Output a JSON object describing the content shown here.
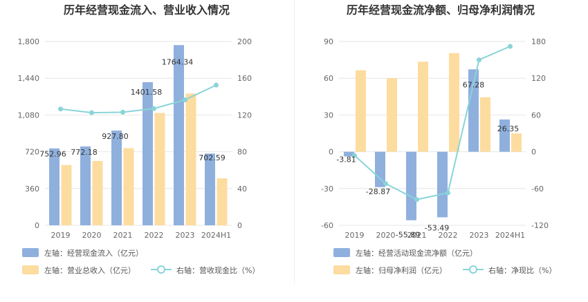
{
  "chart_data": [
    {
      "type": "bar",
      "title": "历年经营现金流入、营业收入情况",
      "categories": [
        "2019",
        "2020",
        "2021",
        "2022",
        "2023",
        "2024H1"
      ],
      "y_left": {
        "ticks": [
          "0",
          "360",
          "720",
          "1,080",
          "1,440",
          "1,800"
        ],
        "ylim": [
          0,
          1800
        ]
      },
      "y_right": {
        "ticks": [
          "0",
          "40",
          "80",
          "120",
          "160",
          "200"
        ],
        "ylim": [
          0,
          200
        ]
      },
      "series": [
        {
          "name": "左轴：经营现金流入（亿元）",
          "axis": "left",
          "type": "bar",
          "color": "#8fb0dd",
          "values": [
            752.96,
            772.18,
            927.8,
            1401.58,
            1764.34,
            702.59
          ],
          "labels": [
            "752.96",
            "772.18",
            "927.80",
            "1401.58",
            "1764.34",
            "702.59"
          ]
        },
        {
          "name": "左轴：营业总收入（亿元）",
          "axis": "left",
          "type": "bar",
          "color": "#fddca0",
          "values": [
            590,
            630,
            755,
            1100,
            1290,
            460
          ]
        },
        {
          "name": "右轴：营收现金比（%）",
          "axis": "right",
          "type": "line",
          "color": "#89d4d8",
          "values": [
            126.5,
            122.5,
            123,
            127,
            136.5,
            152.5
          ]
        }
      ]
    },
    {
      "type": "bar",
      "title": "历年经营现金流净额、归母净利润情况",
      "categories": [
        "2019",
        "2020",
        "2021",
        "2022",
        "2023",
        "2024H1"
      ],
      "y_left": {
        "ticks": [
          "-60",
          "-30",
          "0",
          "30",
          "60",
          "90"
        ],
        "ylim": [
          -60,
          90
        ]
      },
      "y_right": {
        "ticks": [
          "-120",
          "-60",
          "0",
          "60",
          "120",
          "180"
        ],
        "ylim": [
          -120,
          180
        ]
      },
      "series": [
        {
          "name": "左轴：经营活动现金流净额（亿元）",
          "axis": "left",
          "type": "bar",
          "color": "#8fb0dd",
          "values": [
            -3.81,
            -28.87,
            -55.89,
            -53.49,
            67.28,
            26.35
          ],
          "labels": [
            "-3.81",
            "-28.87",
            "-55.89",
            "-53.49",
            "67.28",
            "26.35"
          ]
        },
        {
          "name": "左轴：归母净利润（亿元）",
          "axis": "left",
          "type": "bar",
          "color": "#fddca0",
          "values": [
            66.5,
            60,
            73.5,
            80.5,
            44.5,
            15
          ]
        },
        {
          "name": "右轴：净现比（%）",
          "axis": "right",
          "type": "line",
          "color": "#89d4d8",
          "values": [
            -6,
            -52,
            -78,
            -67,
            150,
            172
          ]
        }
      ]
    }
  ]
}
